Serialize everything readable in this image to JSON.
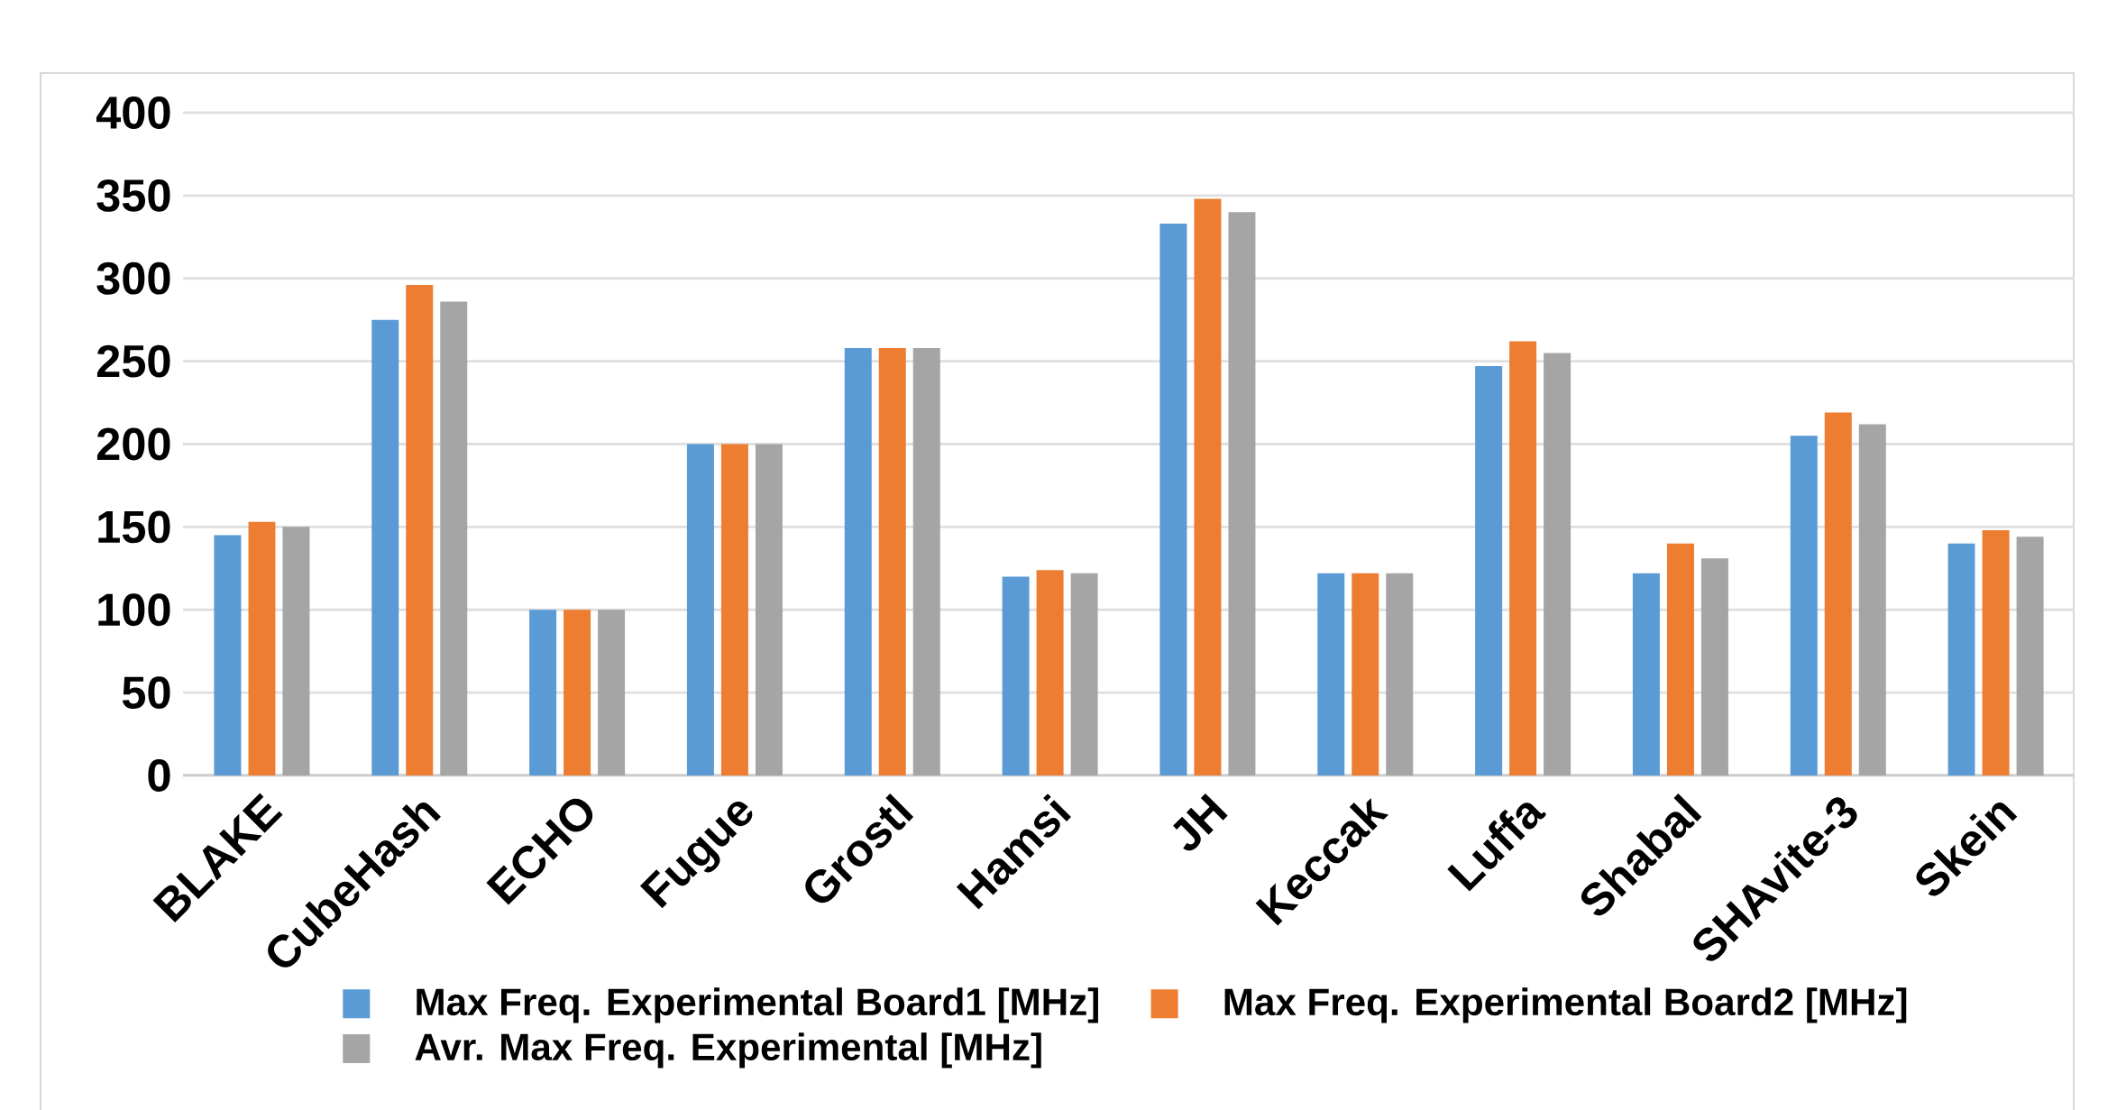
{
  "chart_data": {
    "type": "bar",
    "categories": [
      "BLAKE",
      "CubeHash",
      "ECHO",
      "Fugue",
      "Grostl",
      "Hamsi",
      "JH",
      "Keccak",
      "Luffa",
      "Shabal",
      "SHAvite-3",
      "Skein"
    ],
    "series": [
      {
        "name": "Max Freq. Experimental Board1 [MHz]",
        "color": "#5b9bd5",
        "values": [
          145,
          275,
          100,
          200,
          258,
          120,
          333,
          122,
          247,
          122,
          205,
          140
        ]
      },
      {
        "name": "Max Freq. Experimental Board2 [MHz]",
        "color": "#ed7d31",
        "values": [
          153,
          296,
          100,
          200,
          258,
          124,
          348,
          122,
          262,
          140,
          219,
          148
        ]
      },
      {
        "name": "Avr. Max Freq. Experimental [MHz]",
        "color": "#a5a5a5",
        "values": [
          150,
          286,
          100,
          200,
          258,
          122,
          340,
          122,
          255,
          131,
          212,
          144
        ]
      }
    ],
    "ylim": [
      0,
      400
    ],
    "yticks": [
      0,
      50,
      100,
      150,
      200,
      250,
      300,
      350,
      400
    ],
    "grid": "y",
    "legend": "bottom"
  }
}
